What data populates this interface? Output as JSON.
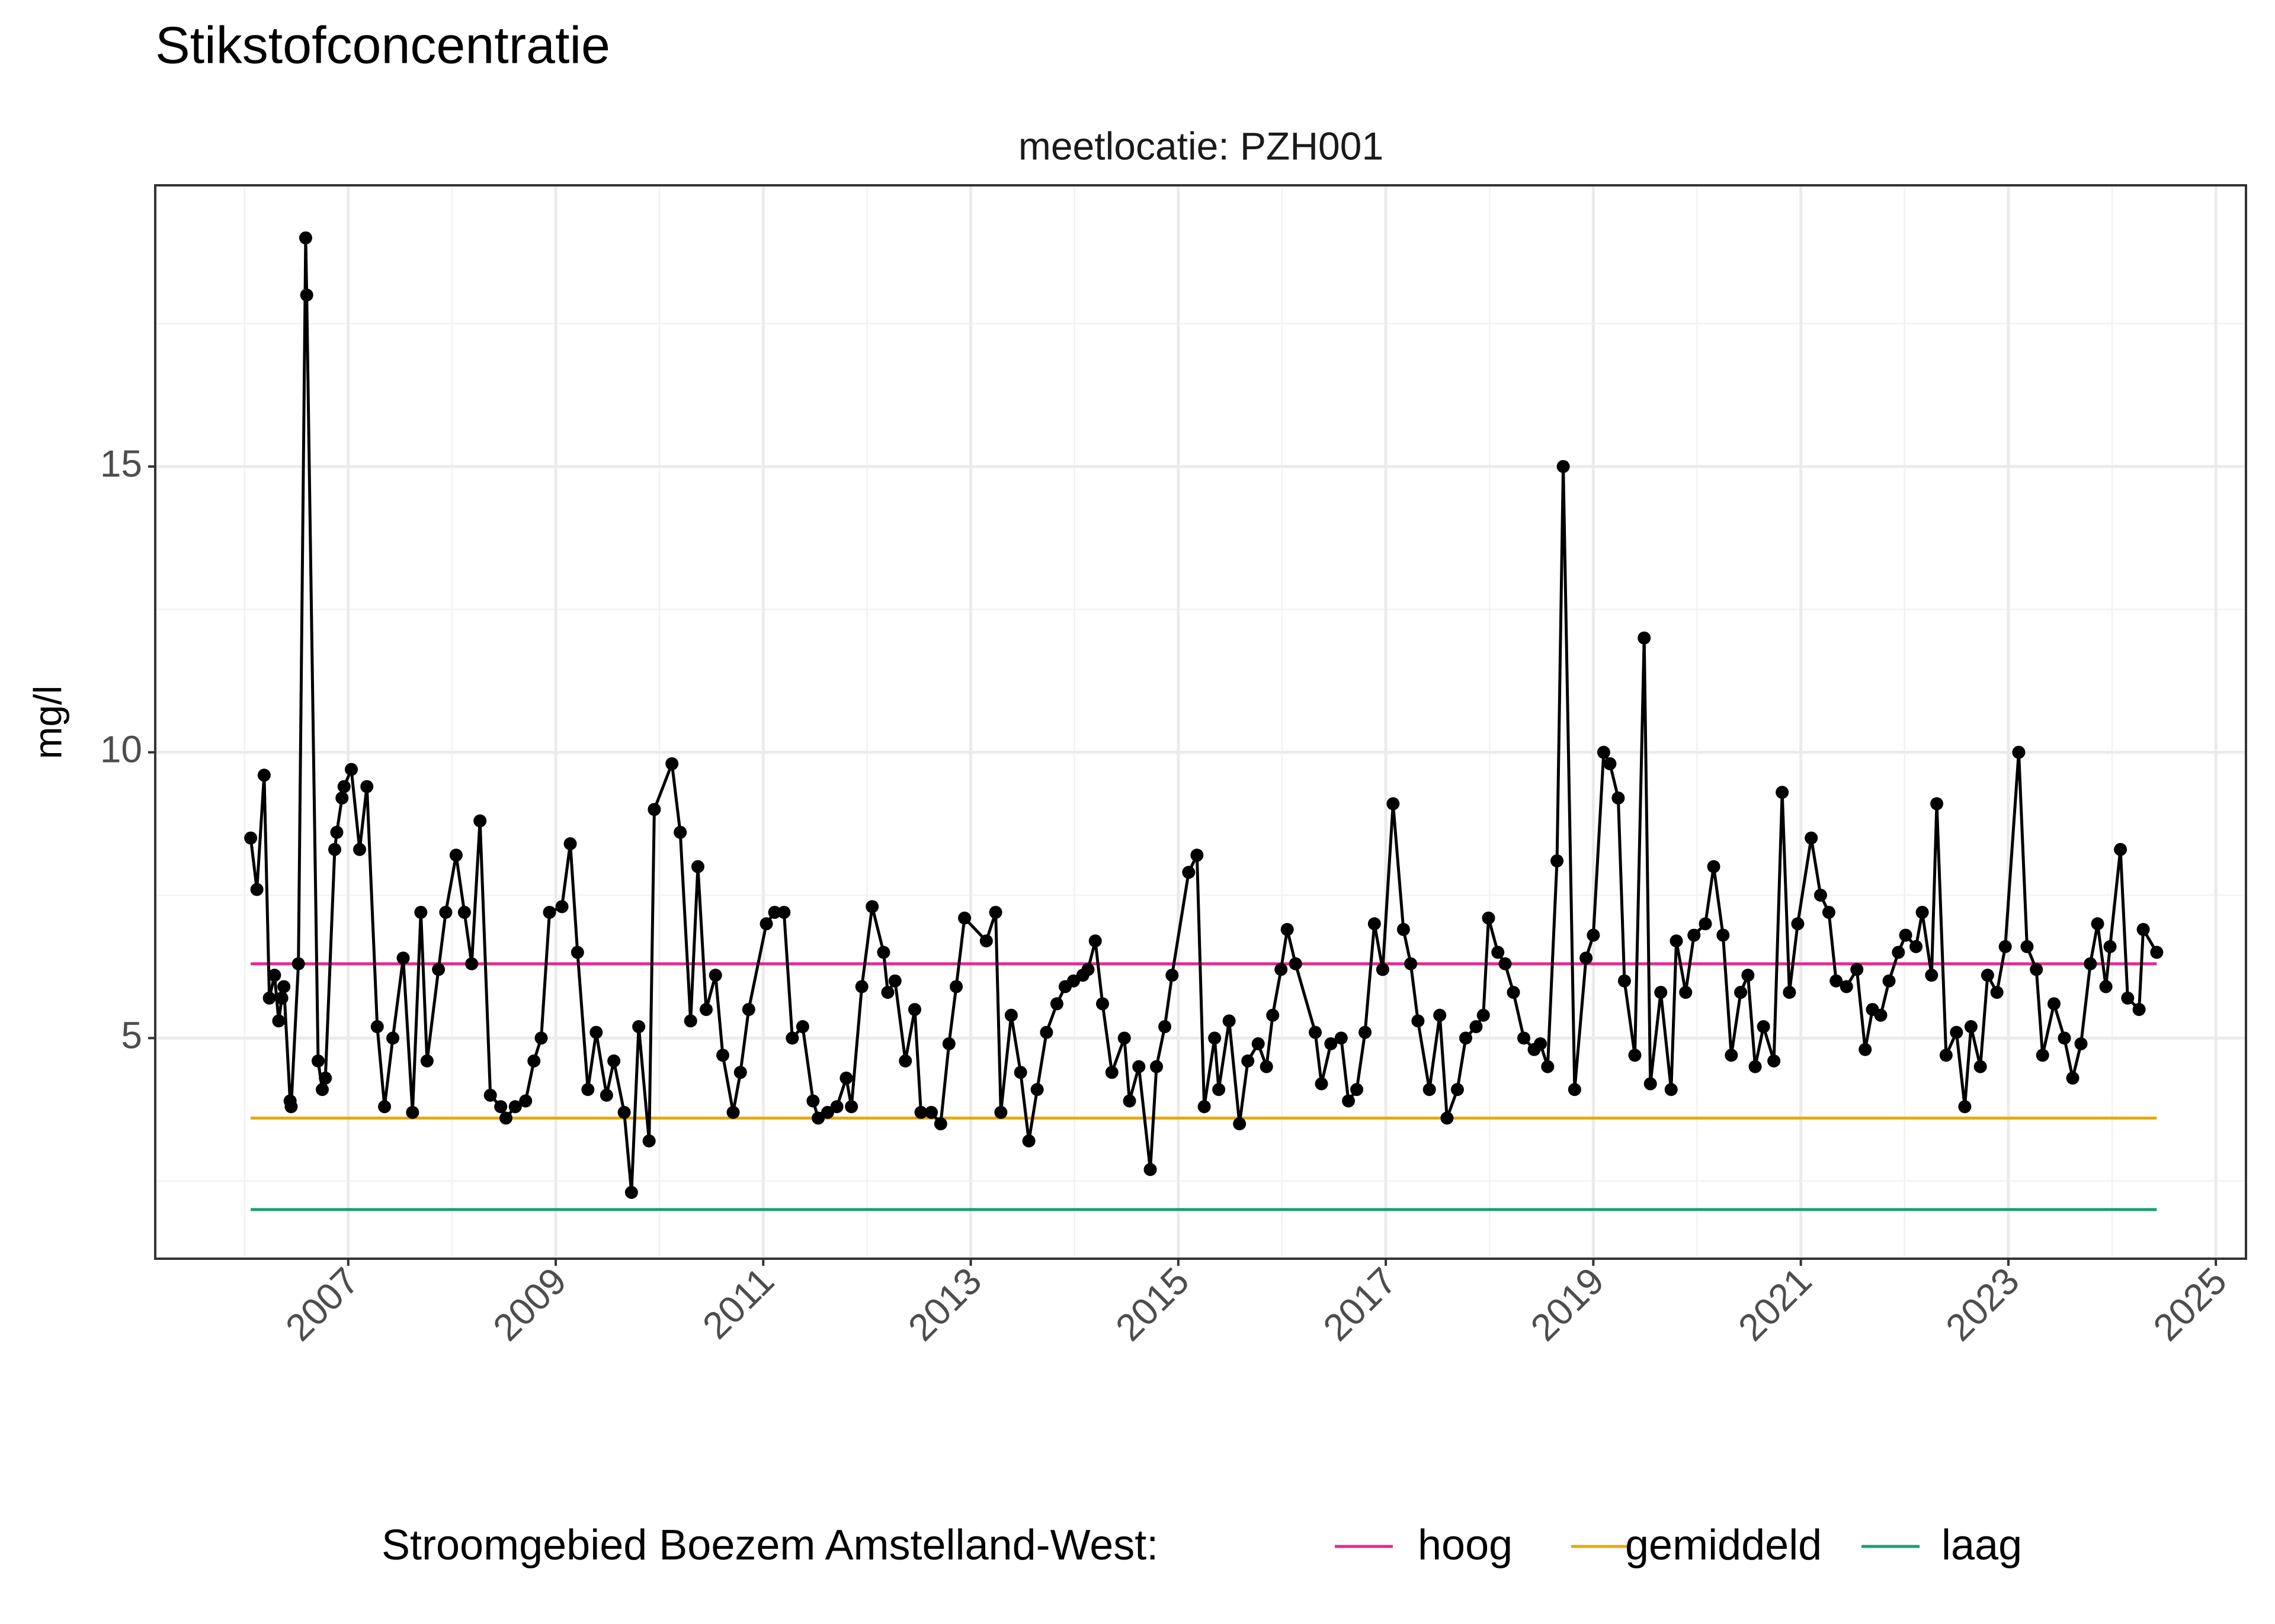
{
  "chart_data": {
    "type": "line",
    "title": "Stikstofconcentratie",
    "subtitle": "meetlocatie: PZH001",
    "ylabel": "mg/l",
    "legend_title": "Stroomgebied Boezem Amstelland-West:",
    "grid": true,
    "xlim": [
      2005.14,
      2025.29
    ],
    "ylim": [
      1.14,
      19.92
    ],
    "xticks": [
      2007,
      2009,
      2011,
      2013,
      2015,
      2017,
      2019,
      2021,
      2023,
      2025
    ],
    "yticks": [
      5,
      10,
      15
    ],
    "x": [
      2006.06,
      2006.12,
      2006.19,
      2006.24,
      2006.29,
      2006.33,
      2006.36,
      2006.38,
      2006.44,
      2006.45,
      2006.52,
      2006.59,
      2006.6,
      2006.71,
      2006.75,
      2006.78,
      2006.87,
      2006.89,
      2006.94,
      2006.96,
      2007.03,
      2007.11,
      2007.18,
      2007.28,
      2007.35,
      2007.43,
      2007.53,
      2007.62,
      2007.7,
      2007.76,
      2007.87,
      2007.94,
      2008.04,
      2008.12,
      2008.19,
      2008.27,
      2008.37,
      2008.47,
      2008.52,
      2008.61,
      2008.71,
      2008.79,
      2008.86,
      2008.94,
      2009.06,
      2009.14,
      2009.21,
      2009.31,
      2009.39,
      2009.49,
      2009.56,
      2009.66,
      2009.73,
      2009.8,
      2009.9,
      2009.95,
      2010.12,
      2010.2,
      2010.3,
      2010.37,
      2010.45,
      2010.54,
      2010.61,
      2010.71,
      2010.78,
      2010.86,
      2011.03,
      2011.11,
      2011.2,
      2011.28,
      2011.38,
      2011.48,
      2011.53,
      2011.62,
      2011.71,
      2011.8,
      2011.85,
      2011.95,
      2012.05,
      2012.16,
      2012.2,
      2012.27,
      2012.37,
      2012.46,
      2012.52,
      2012.62,
      2012.71,
      2012.79,
      2012.86,
      2012.94,
      2013.15,
      2013.24,
      2013.29,
      2013.39,
      2013.48,
      2013.56,
      2013.64,
      2013.73,
      2013.83,
      2013.91,
      2013.99,
      2014.08,
      2014.13,
      2014.2,
      2014.27,
      2014.36,
      2014.48,
      2014.53,
      2014.62,
      2014.73,
      2014.79,
      2014.87,
      2014.94,
      2015.1,
      2015.18,
      2015.25,
      2015.35,
      2015.39,
      2015.49,
      2015.59,
      2015.67,
      2015.77,
      2015.85,
      2015.91,
      2015.99,
      2016.05,
      2016.13,
      2016.32,
      2016.38,
      2016.47,
      2016.57,
      2016.64,
      2016.72,
      2016.8,
      2016.89,
      2016.97,
      2017.07,
      2017.17,
      2017.24,
      2017.31,
      2017.42,
      2017.52,
      2017.59,
      2017.69,
      2017.77,
      2017.87,
      2017.94,
      2017.99,
      2018.08,
      2018.15,
      2018.23,
      2018.33,
      2018.43,
      2018.49,
      2018.56,
      2018.65,
      2018.71,
      2018.82,
      2018.93,
      2019.0,
      2019.1,
      2019.16,
      2019.24,
      2019.3,
      2019.4,
      2019.49,
      2019.55,
      2019.65,
      2019.75,
      2019.8,
      2019.89,
      2019.97,
      2020.08,
      2020.16,
      2020.25,
      2020.33,
      2020.42,
      2020.49,
      2020.56,
      2020.64,
      2020.74,
      2020.82,
      2020.89,
      2020.97,
      2021.1,
      2021.19,
      2021.27,
      2021.34,
      2021.44,
      2021.54,
      2021.62,
      2021.69,
      2021.77,
      2021.85,
      2021.94,
      2022.01,
      2022.11,
      2022.17,
      2022.26,
      2022.31,
      2022.4,
      2022.5,
      2022.58,
      2022.64,
      2022.73,
      2022.8,
      2022.89,
      2022.97,
      2023.1,
      2023.18,
      2023.27,
      2023.33,
      2023.44,
      2023.54,
      2023.62,
      2023.7,
      2023.79,
      2023.86,
      2023.94,
      2023.98,
      2024.08,
      2024.15,
      2024.26,
      2024.3,
      2024.43
    ],
    "series": [
      {
        "color": "#000000",
        "values": [
          8.5,
          7.6,
          9.6,
          5.7,
          6.1,
          5.3,
          5.7,
          5.9,
          3.9,
          3.8,
          6.3,
          19.0,
          18.0,
          4.6,
          4.1,
          4.3,
          8.3,
          8.6,
          9.2,
          9.4,
          9.7,
          8.3,
          9.4,
          5.2,
          3.8,
          5.0,
          6.4,
          3.7,
          7.2,
          4.6,
          6.2,
          7.2,
          8.2,
          7.2,
          6.3,
          8.8,
          4.0,
          3.8,
          3.6,
          3.8,
          3.9,
          4.6,
          5.0,
          7.2,
          7.3,
          8.4,
          6.5,
          4.1,
          5.1,
          4.0,
          4.6,
          3.7,
          2.3,
          5.2,
          3.2,
          9.0,
          9.8,
          8.6,
          5.3,
          8.0,
          5.5,
          6.1,
          4.7,
          3.7,
          4.4,
          5.5,
          7.0,
          7.2,
          7.2,
          5.0,
          5.2,
          3.9,
          3.6,
          3.7,
          3.8,
          4.3,
          3.8,
          5.9,
          7.3,
          6.5,
          5.8,
          6.0,
          4.6,
          5.5,
          3.7,
          3.7,
          3.5,
          4.9,
          5.9,
          7.1,
          6.7,
          7.2,
          3.7,
          5.4,
          4.4,
          3.2,
          4.1,
          5.1,
          5.6,
          5.9,
          6.0,
          6.1,
          6.2,
          6.7,
          5.6,
          4.4,
          5.0,
          3.9,
          4.5,
          2.7,
          4.5,
          5.2,
          6.1,
          7.9,
          8.2,
          3.8,
          5.0,
          4.1,
          5.3,
          3.5,
          4.6,
          4.9,
          4.5,
          5.4,
          6.2,
          6.9,
          6.3,
          5.1,
          4.2,
          4.9,
          5.0,
          3.9,
          4.1,
          5.1,
          7.0,
          6.2,
          9.1,
          6.9,
          6.3,
          5.3,
          4.1,
          5.4,
          3.6,
          4.1,
          5.0,
          5.2,
          5.4,
          7.1,
          6.5,
          6.3,
          5.8,
          5.0,
          4.8,
          4.9,
          4.5,
          8.1,
          15.0,
          4.1,
          6.4,
          6.8,
          10.0,
          9.8,
          9.2,
          6.0,
          4.7,
          12.0,
          4.2,
          5.8,
          4.1,
          6.7,
          5.8,
          6.8,
          7.0,
          8.0,
          6.8,
          4.7,
          5.8,
          6.1,
          4.5,
          5.2,
          4.6,
          9.3,
          5.8,
          7.0,
          8.5,
          7.5,
          7.2,
          6.0,
          5.9,
          6.2,
          4.8,
          5.5,
          5.4,
          6.0,
          6.5,
          6.8,
          6.6,
          7.2,
          6.1,
          9.1,
          4.7,
          5.1,
          3.8,
          5.2,
          4.5,
          6.1,
          5.8,
          6.6,
          10.0,
          6.6,
          6.2,
          4.7,
          5.6,
          5.0,
          4.3,
          4.9,
          6.3,
          7.0,
          5.9,
          6.6,
          8.3,
          5.7,
          5.5,
          6.9,
          6.5
        ]
      }
    ],
    "reference_lines": [
      {
        "name": "hoog",
        "color": "#e7298a",
        "value": 6.3
      },
      {
        "name": "gemiddeld",
        "color": "#e6ab02",
        "value": 3.6
      },
      {
        "name": "laag",
        "color": "#1b9e77",
        "value": 2.0
      }
    ]
  }
}
